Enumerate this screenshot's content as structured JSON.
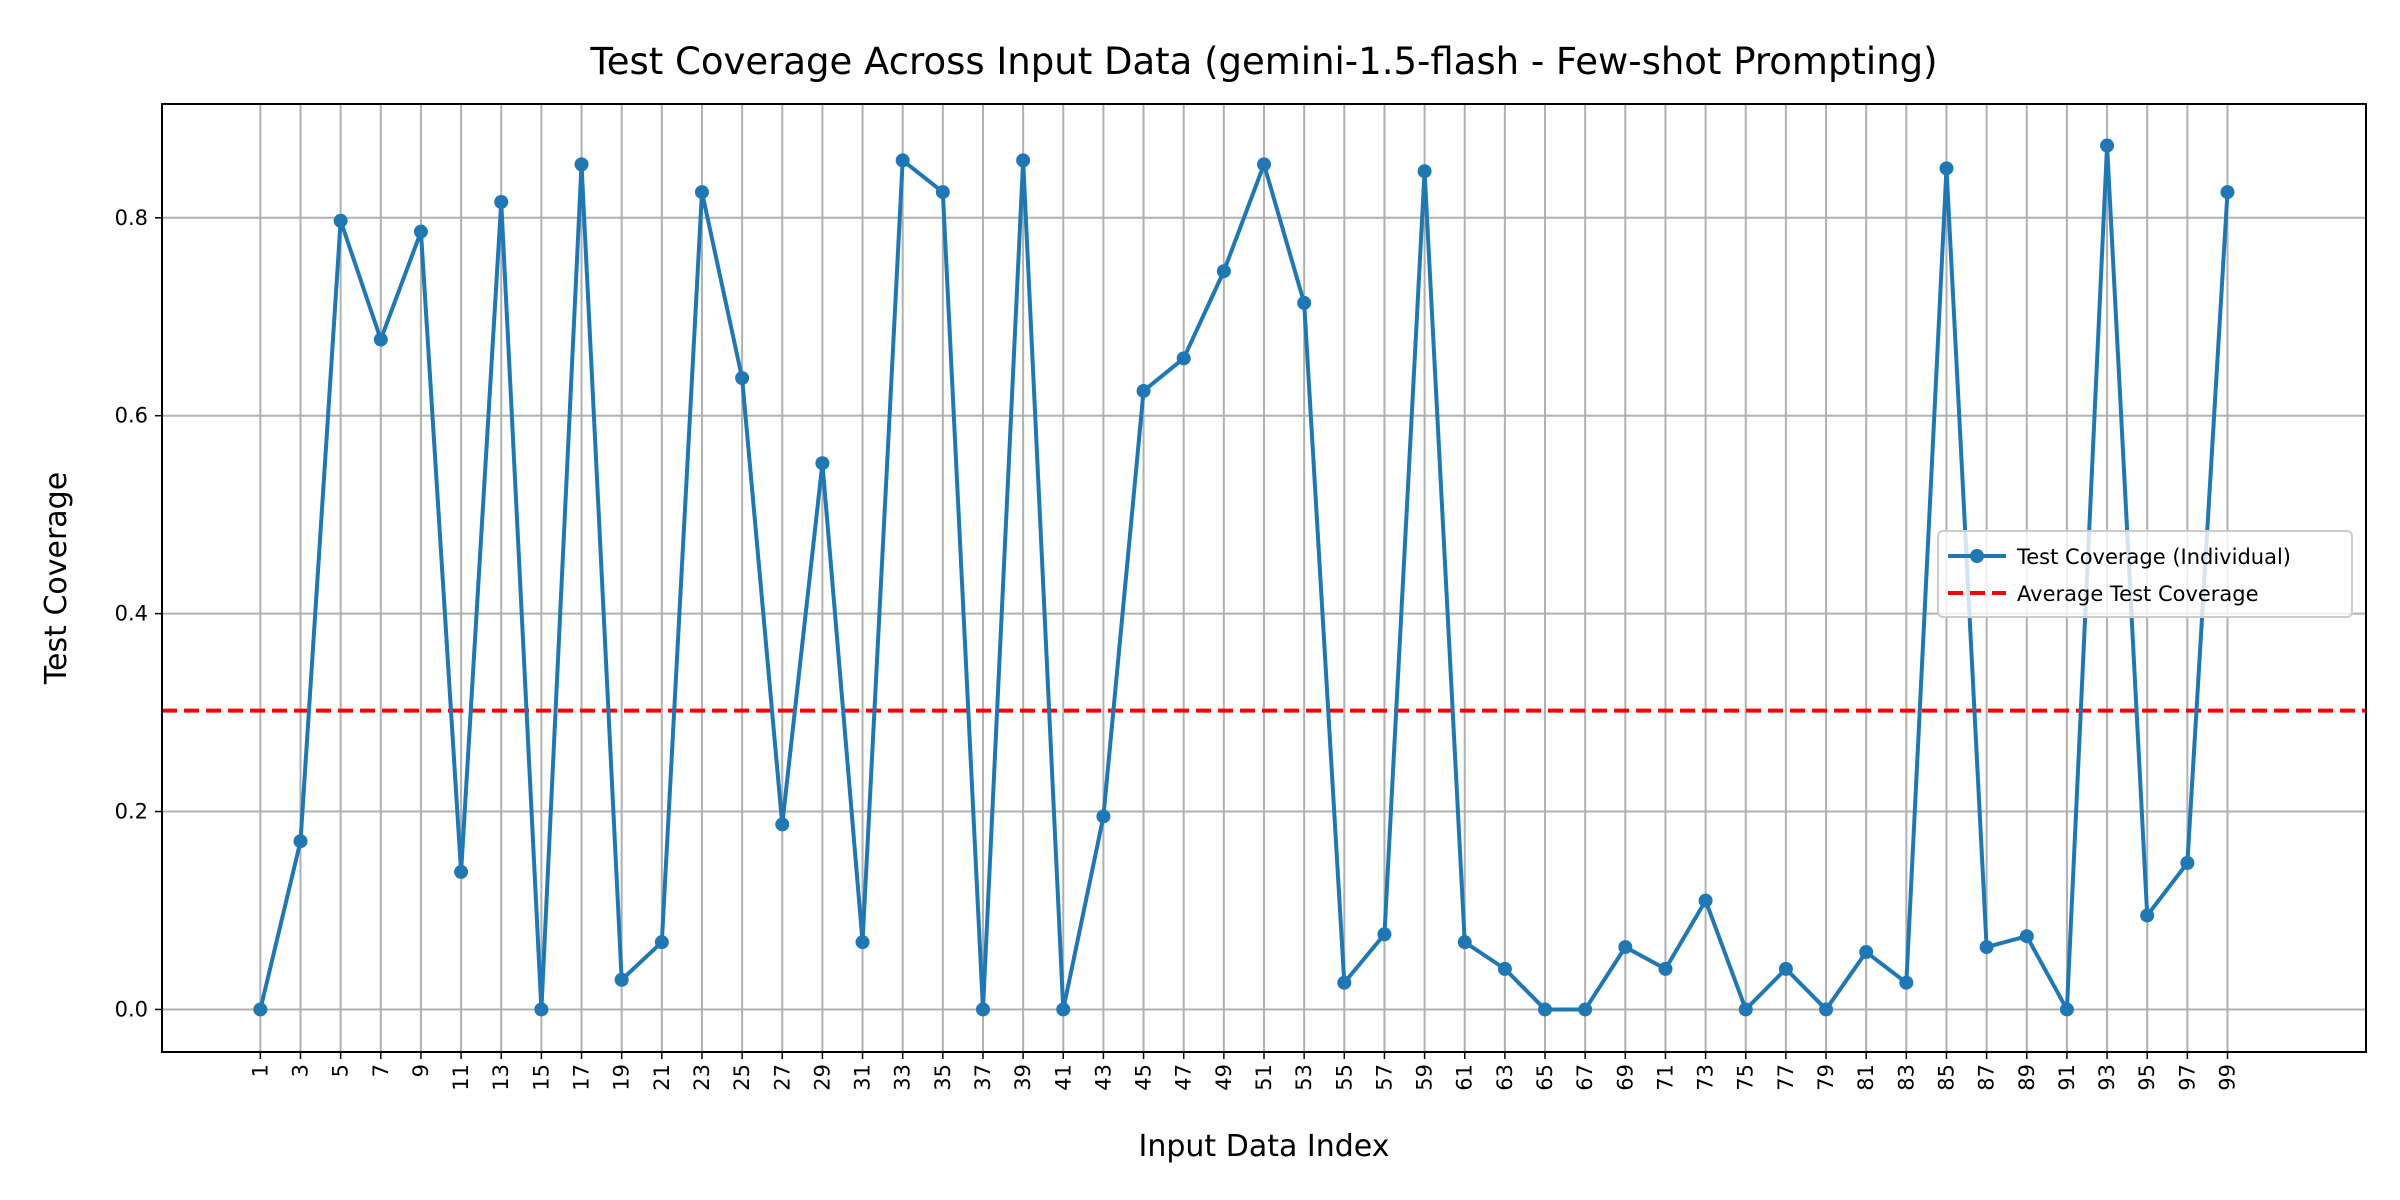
{
  "chart_data": {
    "type": "line",
    "title": "Test Coverage Across Input Data (gemini-1.5-flash - Few-shot Prompting)",
    "xlabel": "Input Data Index",
    "ylabel": "Test Coverage",
    "xlim": [
      -3.9,
      105.9
    ],
    "ylim": [
      -0.043,
      0.915
    ],
    "x_ticks": [
      1,
      3,
      5,
      7,
      9,
      11,
      13,
      15,
      17,
      19,
      21,
      23,
      25,
      27,
      29,
      31,
      33,
      35,
      37,
      39,
      41,
      43,
      45,
      47,
      49,
      51,
      53,
      55,
      57,
      59,
      61,
      63,
      65,
      67,
      69,
      71,
      73,
      75,
      77,
      79,
      81,
      83,
      85,
      87,
      89,
      91,
      93,
      95,
      97,
      99
    ],
    "y_ticks": [
      0.0,
      0.2,
      0.4,
      0.6,
      0.8
    ],
    "y_tick_labels": [
      "0.0",
      "0.2",
      "0.4",
      "0.6",
      "0.8"
    ],
    "grid": true,
    "legend_position": "center-right",
    "series": [
      {
        "name": "Test Coverage (Individual)",
        "color": "#1f77b4",
        "style": "solid-line-with-dots",
        "x": [
          1,
          3,
          5,
          7,
          9,
          11,
          13,
          15,
          17,
          19,
          21,
          23,
          25,
          27,
          29,
          31,
          33,
          35,
          37,
          39,
          41,
          43,
          45,
          47,
          49,
          51,
          53,
          55,
          57,
          59,
          61,
          63,
          65,
          67,
          69,
          71,
          73,
          75,
          77,
          79,
          81,
          83,
          85,
          87,
          89,
          91,
          93,
          95,
          97,
          99
        ],
        "values": [
          0.0,
          0.17,
          0.797,
          0.677,
          0.786,
          0.139,
          0.816,
          0.0,
          0.854,
          0.03,
          0.068,
          0.826,
          0.638,
          0.187,
          0.552,
          0.068,
          0.858,
          0.826,
          0.0,
          0.858,
          0.0,
          0.195,
          0.625,
          0.658,
          0.746,
          0.854,
          0.714,
          0.027,
          0.076,
          0.847,
          0.068,
          0.041,
          0.0,
          0.0,
          0.063,
          0.041,
          0.11,
          0.0,
          0.041,
          0.0,
          0.058,
          0.027,
          0.85,
          0.063,
          0.074,
          0.0,
          0.873,
          0.095,
          0.148,
          0.826
        ]
      },
      {
        "name": "Average Test Coverage",
        "color": "#ff0000",
        "style": "dashed",
        "values": [
          0.302
        ]
      }
    ]
  }
}
